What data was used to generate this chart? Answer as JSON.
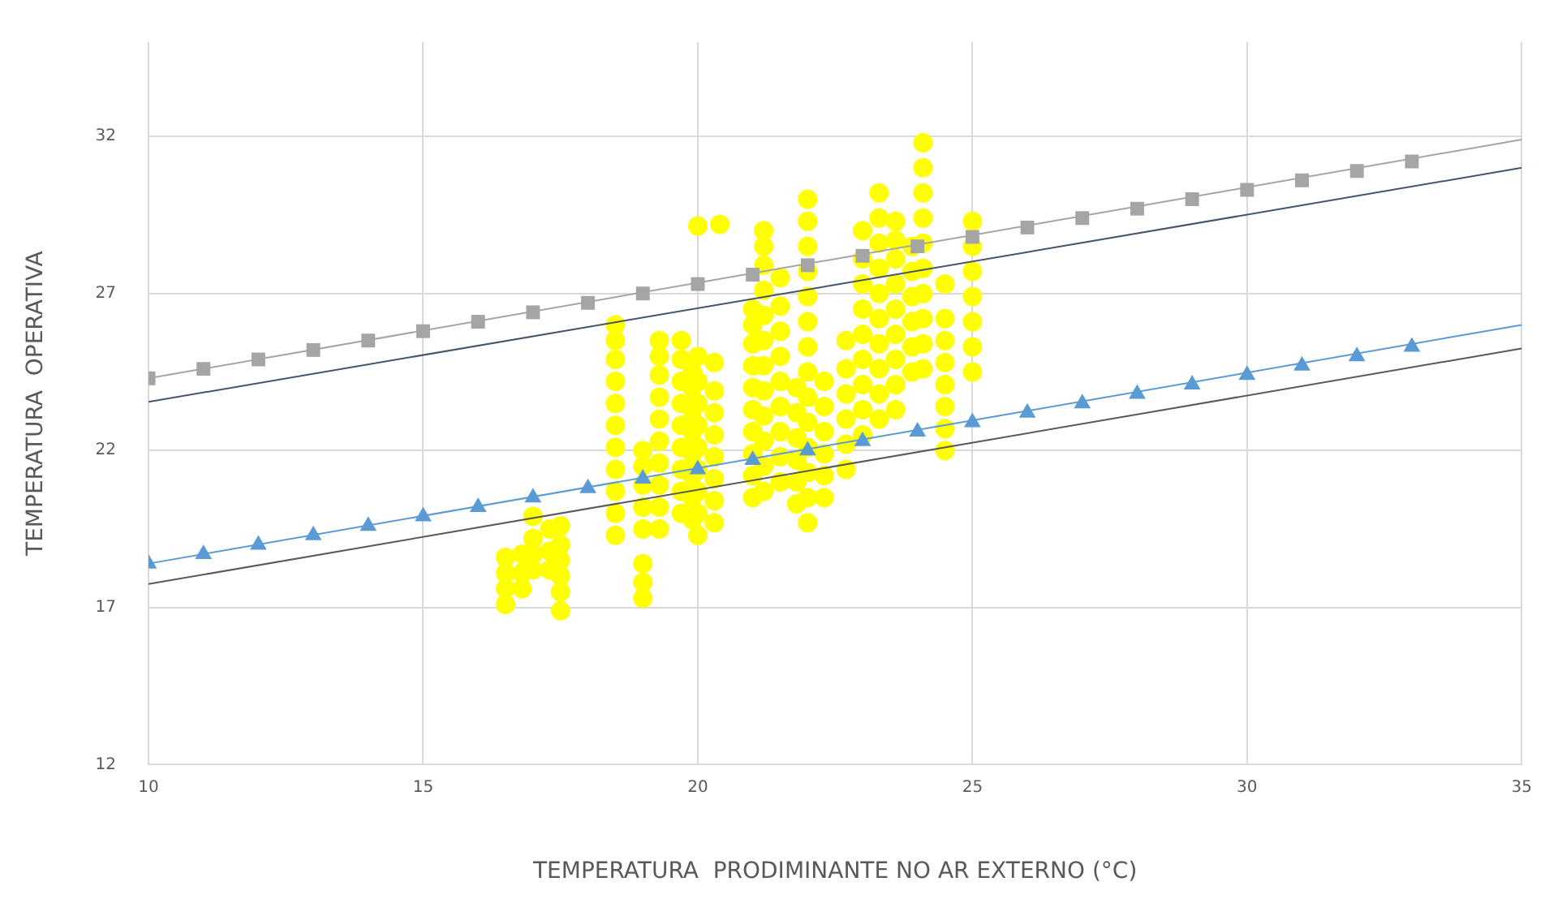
{
  "chart_data": {
    "type": "scatter",
    "xlabel": "TEMPERATURA  PRODIMINANTE NO AR EXTERNO (°C)",
    "ylabel": "TEMPERATURA  OPERATIVA",
    "xlim": [
      10,
      35
    ],
    "ylim": [
      12,
      35
    ],
    "xticks": [
      10,
      15,
      20,
      25,
      30,
      35
    ],
    "yticks": [
      12,
      17,
      22,
      27,
      32
    ],
    "grid": true,
    "series": [
      {
        "type": "line",
        "color": "#a5a5a5",
        "x": [
          10,
          35
        ],
        "values": [
          24.3,
          31.9
        ],
        "marker": "none"
      },
      {
        "type": "line",
        "color": "#44546a",
        "x": [
          10,
          35
        ],
        "values": [
          23.55,
          31.0
        ],
        "marker": "none"
      },
      {
        "type": "line",
        "color": "#5b9bd5",
        "x": [
          10,
          35
        ],
        "values": [
          18.4,
          26.0
        ],
        "marker": "none"
      },
      {
        "type": "line",
        "color": "#595959",
        "x": [
          10,
          35
        ],
        "values": [
          17.75,
          25.25
        ],
        "marker": "none"
      },
      {
        "type": "scatter",
        "color": "#a5a5a5",
        "marker": "square",
        "x": [
          10,
          11,
          12,
          13,
          14,
          15,
          16,
          17,
          18,
          19,
          20,
          21,
          22,
          23,
          24,
          25,
          26,
          27,
          28,
          29,
          30,
          31,
          32,
          33
        ],
        "values": [
          24.3,
          24.6,
          24.9,
          25.2,
          25.5,
          25.8,
          26.1,
          26.4,
          26.7,
          27.0,
          27.3,
          27.6,
          27.9,
          28.2,
          28.5,
          28.8,
          29.1,
          29.4,
          29.7,
          30.0,
          30.3,
          30.6,
          30.9,
          31.2
        ]
      },
      {
        "type": "scatter",
        "color": "#5b9bd5",
        "marker": "triangle",
        "x": [
          10,
          11,
          12,
          13,
          14,
          15,
          16,
          17,
          18,
          19,
          20,
          21,
          22,
          23,
          24,
          25,
          26,
          27,
          28,
          29,
          30,
          31,
          32,
          33
        ],
        "values": [
          18.4,
          18.7,
          19.0,
          19.3,
          19.6,
          19.9,
          20.2,
          20.5,
          20.8,
          21.1,
          21.4,
          21.7,
          22.0,
          22.3,
          22.6,
          22.9,
          23.2,
          23.5,
          23.8,
          24.1,
          24.4,
          24.7,
          25.0,
          25.3
        ]
      },
      {
        "type": "scatter",
        "color": "#ffff00",
        "marker": "circle",
        "x": [
          16.5,
          16.5,
          16.5,
          16.5,
          16.8,
          16.8,
          16.8,
          17.0,
          17.0,
          17.0,
          17.0,
          17.3,
          17.3,
          17.3,
          17.5,
          17.5,
          17.5,
          17.5,
          17.5,
          17.5,
          18.5,
          18.5,
          18.5,
          18.5,
          18.5,
          18.5,
          18.5,
          18.5,
          18.5,
          18.5,
          18.5,
          19.0,
          19.0,
          19.0,
          19.0,
          19.0,
          19.0,
          19.0,
          19.0,
          19.3,
          19.3,
          19.3,
          19.3,
          19.3,
          19.3,
          19.3,
          19.3,
          19.3,
          19.3,
          19.7,
          19.7,
          19.7,
          19.7,
          19.7,
          19.7,
          19.7,
          19.7,
          19.7,
          19.9,
          19.9,
          19.9,
          19.9,
          19.9,
          19.9,
          19.9,
          19.9,
          20.0,
          20.0,
          20.0,
          20.0,
          20.0,
          20.0,
          20.0,
          20.0,
          20.0,
          20.0,
          20.3,
          20.3,
          20.3,
          20.3,
          20.3,
          20.3,
          20.3,
          20.3,
          20.4,
          21.0,
          21.0,
          21.0,
          21.0,
          21.0,
          21.0,
          21.0,
          21.0,
          21.0,
          21.0,
          21.2,
          21.2,
          21.2,
          21.2,
          21.2,
          21.2,
          21.2,
          21.2,
          21.2,
          21.2,
          21.2,
          21.2,
          21.5,
          21.5,
          21.5,
          21.5,
          21.5,
          21.5,
          21.5,
          21.5,
          21.5,
          21.8,
          21.8,
          21.8,
          21.8,
          21.8,
          21.8,
          22.0,
          22.0,
          22.0,
          22.0,
          22.0,
          22.0,
          22.0,
          22.0,
          22.0,
          22.0,
          22.0,
          22.0,
          22.0,
          22.0,
          22.3,
          22.3,
          22.3,
          22.3,
          22.3,
          22.3,
          22.7,
          22.7,
          22.7,
          22.7,
          22.7,
          22.7,
          23.0,
          23.0,
          23.0,
          23.0,
          23.0,
          23.0,
          23.0,
          23.0,
          23.0,
          23.3,
          23.3,
          23.3,
          23.3,
          23.3,
          23.3,
          23.3,
          23.3,
          23.3,
          23.3,
          23.6,
          23.6,
          23.6,
          23.6,
          23.6,
          23.6,
          23.6,
          23.6,
          23.6,
          23.9,
          23.9,
          23.9,
          23.9,
          23.9,
          23.9,
          24.1,
          24.1,
          24.1,
          24.1,
          24.1,
          24.1,
          24.1,
          24.1,
          24.1,
          24.1,
          24.5,
          24.5,
          24.5,
          24.5,
          24.5,
          24.5,
          24.5,
          24.5,
          25.0,
          25.0,
          25.0,
          25.0,
          25.0,
          25.0,
          25.0
        ],
        "values": [
          17.1,
          17.6,
          18.1,
          18.6,
          17.6,
          18.1,
          18.7,
          18.2,
          18.7,
          19.2,
          19.9,
          18.2,
          18.8,
          19.5,
          16.9,
          17.5,
          18.0,
          18.5,
          19.0,
          19.6,
          19.3,
          20.0,
          20.7,
          21.4,
          22.1,
          22.8,
          23.5,
          24.2,
          24.9,
          25.5,
          26.0,
          17.3,
          17.8,
          18.4,
          19.5,
          20.2,
          20.9,
          21.5,
          22.0,
          19.5,
          20.2,
          20.9,
          21.6,
          22.3,
          23.0,
          23.7,
          24.4,
          25.0,
          25.5,
          20.0,
          20.7,
          21.4,
          22.1,
          22.8,
          23.5,
          24.2,
          24.9,
          25.5,
          19.8,
          20.5,
          21.2,
          21.9,
          22.6,
          23.3,
          24.0,
          24.5,
          19.3,
          20.0,
          20.7,
          21.4,
          22.1,
          22.8,
          23.5,
          24.2,
          25.0,
          29.15,
          19.7,
          20.4,
          21.1,
          21.8,
          22.5,
          23.2,
          23.9,
          24.8,
          29.2,
          20.5,
          21.2,
          21.9,
          22.6,
          23.3,
          24.0,
          24.7,
          25.4,
          26.0,
          26.5,
          20.7,
          21.5,
          22.3,
          23.1,
          23.9,
          24.7,
          25.5,
          26.3,
          27.1,
          27.9,
          28.5,
          29.0,
          21.0,
          21.8,
          22.6,
          23.4,
          24.2,
          25.0,
          25.8,
          26.6,
          27.5,
          20.3,
          21.0,
          21.7,
          22.4,
          23.2,
          24.0,
          19.7,
          20.5,
          21.3,
          22.1,
          22.9,
          23.7,
          24.5,
          25.3,
          26.1,
          26.9,
          27.7,
          28.5,
          29.3,
          30.0,
          20.5,
          21.2,
          21.9,
          22.6,
          23.4,
          24.2,
          21.4,
          22.2,
          23.0,
          23.8,
          24.6,
          25.5,
          22.5,
          23.3,
          24.1,
          24.9,
          25.7,
          26.5,
          27.3,
          28.1,
          29.0,
          23.0,
          23.8,
          24.6,
          25.4,
          26.2,
          27.0,
          27.8,
          28.6,
          29.4,
          30.2,
          23.3,
          24.1,
          24.9,
          25.7,
          26.5,
          27.3,
          28.1,
          28.7,
          29.3,
          24.5,
          25.3,
          26.1,
          26.9,
          27.7,
          28.5,
          24.6,
          25.4,
          26.2,
          27.0,
          27.8,
          28.6,
          29.4,
          30.2,
          31.0,
          31.8,
          22.0,
          22.7,
          23.4,
          24.1,
          24.8,
          25.5,
          26.2,
          27.3,
          24.5,
          25.3,
          26.1,
          26.9,
          27.7,
          28.5,
          29.3
        ]
      }
    ]
  }
}
